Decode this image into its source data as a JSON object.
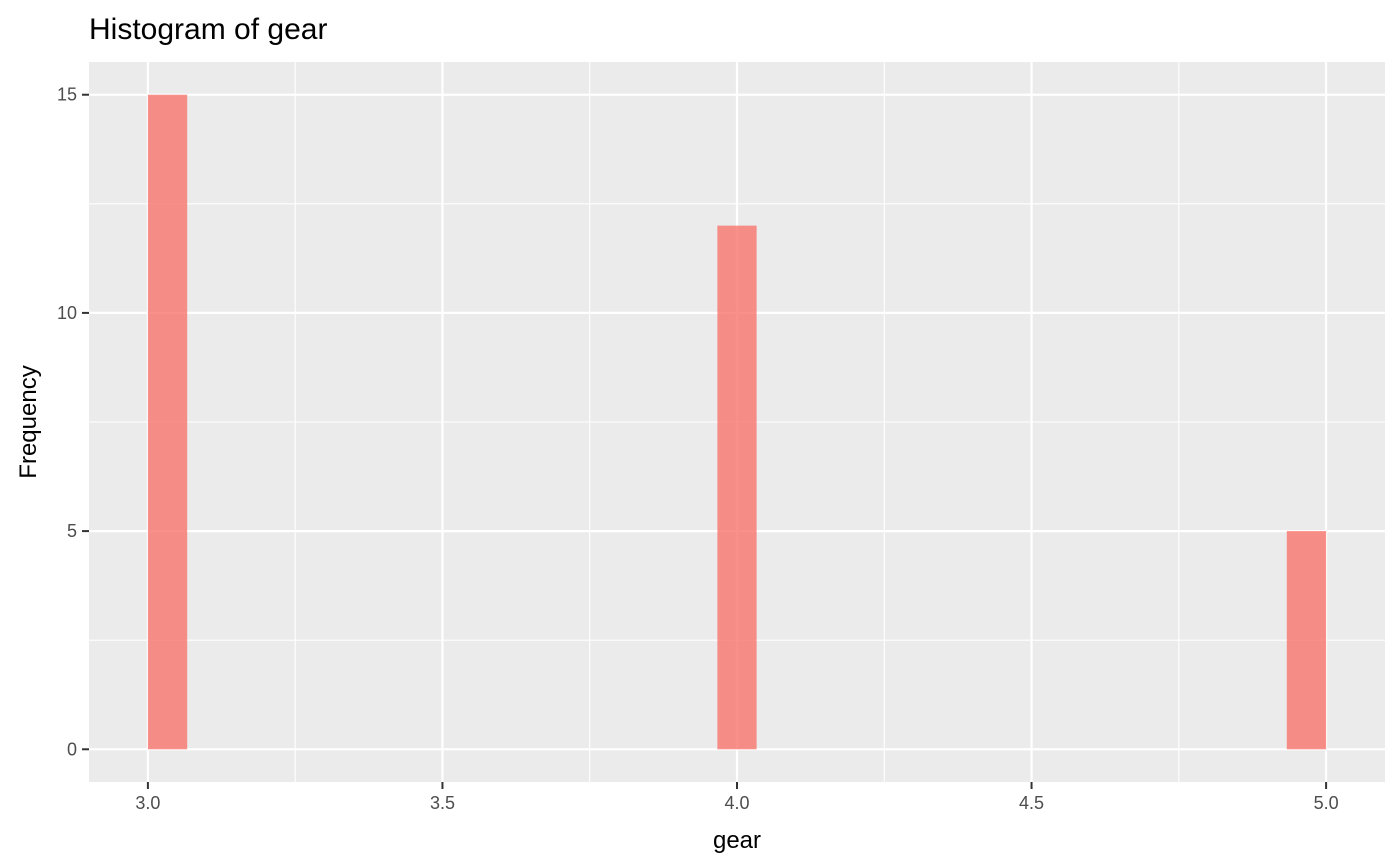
{
  "chart_data": {
    "type": "bar",
    "title": "Histogram of gear",
    "xlabel": "gear",
    "ylabel": "Frequency",
    "xlim": [
      2.9,
      5.1
    ],
    "ylim": [
      -0.75,
      15.75
    ],
    "x_ticks": [
      "3.0",
      "3.5",
      "4.0",
      "4.5",
      "5.0"
    ],
    "x_tick_values": [
      3.0,
      3.5,
      4.0,
      4.5,
      5.0
    ],
    "x_minor_values": [
      3.25,
      3.75,
      4.25,
      4.75
    ],
    "y_ticks": [
      "0",
      "5",
      "10",
      "15"
    ],
    "y_tick_values": [
      0,
      5,
      10,
      15
    ],
    "y_minor_values": [
      2.5,
      7.5,
      12.5
    ],
    "bin_width": 0.0667,
    "bars": [
      {
        "x_start": 3.0,
        "x_end": 3.0667,
        "count": 15
      },
      {
        "x_start": 3.9667,
        "x_end": 4.0333,
        "count": 12
      },
      {
        "x_start": 4.9333,
        "x_end": 5.0,
        "count": 5
      }
    ],
    "grid": true,
    "colors": {
      "bar_fill": "#f8766d",
      "panel_background": "#ebebeb",
      "grid_line": "#ffffff"
    }
  }
}
